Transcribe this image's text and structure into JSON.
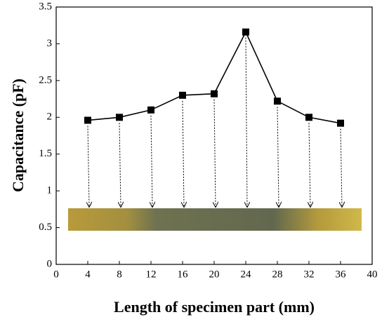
{
  "chart_data": {
    "type": "line",
    "x_label": "Length of specimen part (mm)",
    "y_label": "Capacitance (pF)",
    "x": [
      4,
      8,
      12,
      16,
      20,
      24,
      28,
      32,
      36
    ],
    "series": [
      {
        "name": "Capacitance",
        "color": "#000000",
        "values": [
          1.96,
          2.0,
          2.1,
          2.3,
          2.32,
          3.16,
          2.22,
          2.0,
          1.92
        ]
      }
    ],
    "xlim": [
      0,
      40
    ],
    "xticks": [
      0,
      4,
      8,
      12,
      16,
      20,
      24,
      28,
      32,
      36,
      40
    ],
    "ylim": [
      0,
      3.5
    ],
    "yticks": [
      0,
      0.5,
      1,
      1.5,
      2,
      2.5,
      3,
      3.5
    ]
  }
}
